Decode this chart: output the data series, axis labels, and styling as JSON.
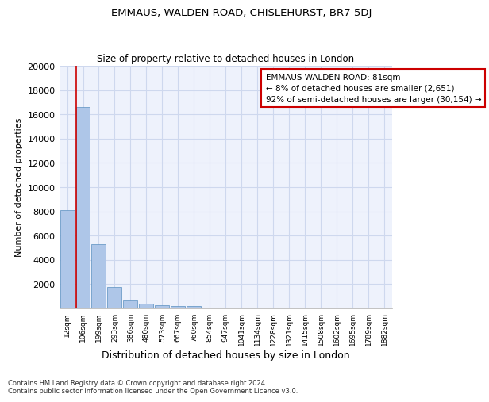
{
  "title": "EMMAUS, WALDEN ROAD, CHISLEHURST, BR7 5DJ",
  "subtitle": "Size of property relative to detached houses in London",
  "xlabel": "Distribution of detached houses by size in London",
  "ylabel": "Number of detached properties",
  "categories": [
    "12sqm",
    "106sqm",
    "199sqm",
    "293sqm",
    "386sqm",
    "480sqm",
    "573sqm",
    "667sqm",
    "760sqm",
    "854sqm",
    "947sqm",
    "1041sqm",
    "1134sqm",
    "1228sqm",
    "1321sqm",
    "1415sqm",
    "1508sqm",
    "1602sqm",
    "1695sqm",
    "1789sqm",
    "1882sqm"
  ],
  "values": [
    8100,
    16600,
    5300,
    1750,
    700,
    380,
    290,
    200,
    190,
    0,
    0,
    0,
    0,
    0,
    0,
    0,
    0,
    0,
    0,
    0,
    0
  ],
  "bar_color": "#aec6e8",
  "bar_edge_color": "#5a8fc0",
  "grid_color": "#ced8ee",
  "background_color": "#eef2fc",
  "annotation_line1": "EMMAUS WALDEN ROAD: 81sqm",
  "annotation_line2": "← 8% of detached houses are smaller (2,651)",
  "annotation_line3": "92% of semi-detached houses are larger (30,154) →",
  "annotation_box_color": "#cc0000",
  "property_line_x": 0.575,
  "ylim": [
    0,
    20000
  ],
  "yticks": [
    0,
    2000,
    4000,
    6000,
    8000,
    10000,
    12000,
    14000,
    16000,
    18000,
    20000
  ],
  "footer_line1": "Contains HM Land Registry data © Crown copyright and database right 2024.",
  "footer_line2": "Contains public sector information licensed under the Open Government Licence v3.0."
}
